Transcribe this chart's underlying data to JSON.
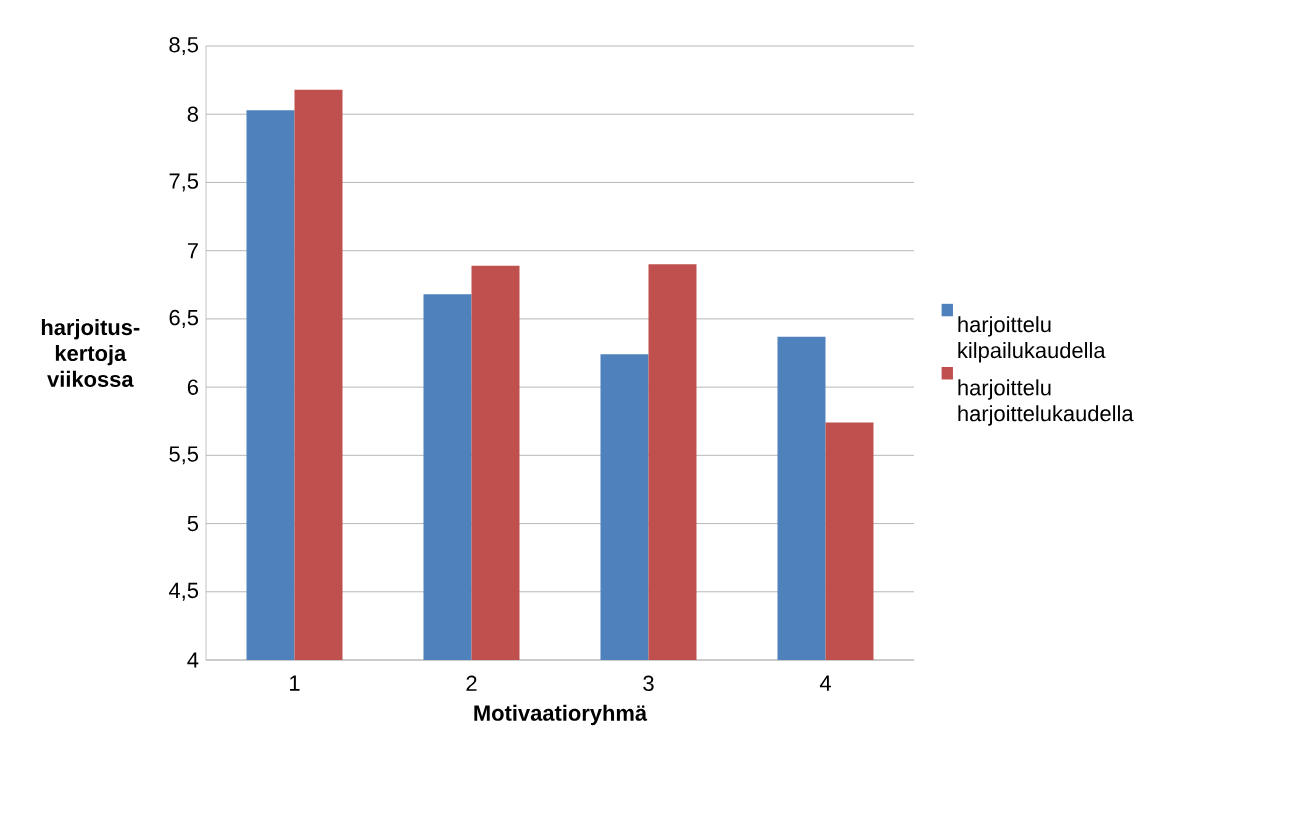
{
  "chart_data": {
    "type": "bar",
    "xlabel": "Motivaatioryhmä",
    "ylabel": "harjoitus-kertoja viikossa",
    "categories": [
      "1",
      "2",
      "3",
      "4"
    ],
    "series": [
      {
        "name": "harjoittelu kilpailukaudella",
        "color": "#4f81bd",
        "values": [
          8.03,
          6.68,
          6.24,
          6.37
        ]
      },
      {
        "name": "harjoittelu harjoittelukaudella",
        "color": "#c0504d",
        "values": [
          8.18,
          6.89,
          6.9,
          5.74
        ]
      }
    ],
    "ylim": [
      4,
      8.5
    ],
    "yticks": [
      4,
      {
        "value": 4.5,
        "label": "4,5"
      },
      5,
      {
        "value": 5.5,
        "label": "5,5"
      },
      6,
      {
        "value": 6.5,
        "label": "6,5"
      },
      7,
      {
        "value": 7.5,
        "label": "7,5"
      },
      8,
      {
        "value": 8.5,
        "label": "8,5"
      }
    ],
    "grid": "y",
    "legend": "right"
  }
}
